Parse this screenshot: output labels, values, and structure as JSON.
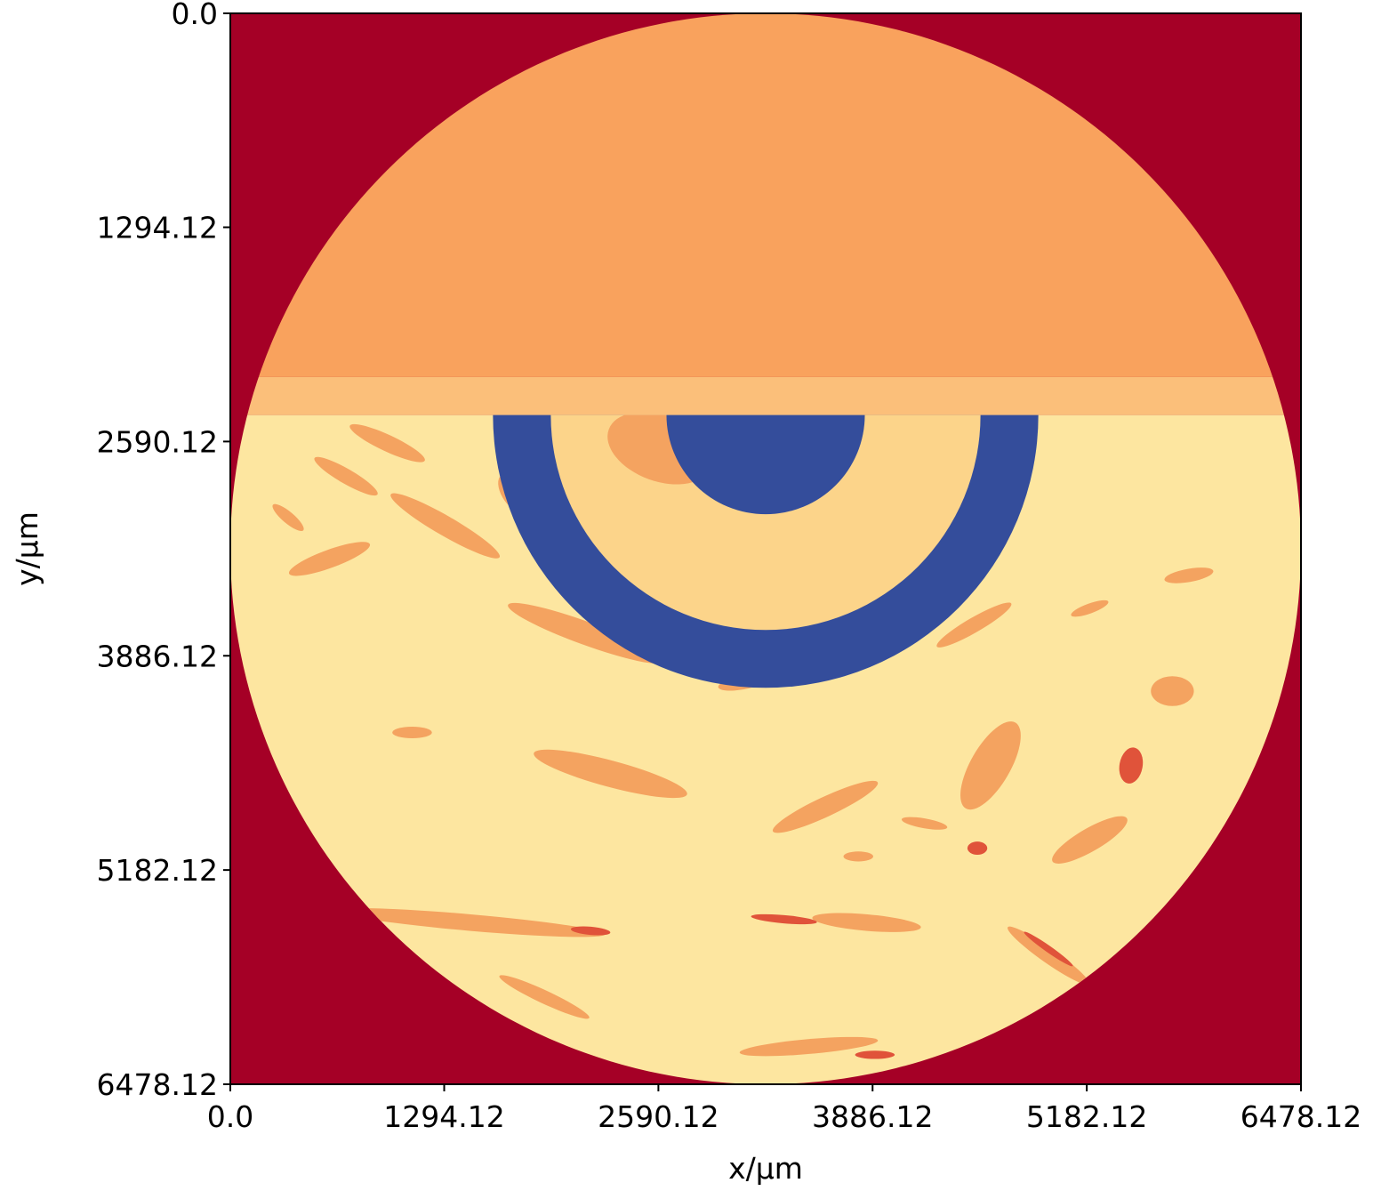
{
  "chart_data": {
    "type": "heatmap",
    "title": "",
    "xlabel": "x/µm",
    "ylabel": "y/µm",
    "xlim": [
      0.0,
      6478.12
    ],
    "ylim": [
      6478.12,
      0.0
    ],
    "y_axis_inverted": true,
    "grid": false,
    "colorbar": false,
    "x_ticks": [
      {
        "value": 0.0,
        "label": "0.0"
      },
      {
        "value": 1294.12,
        "label": "1294.12"
      },
      {
        "value": 2590.12,
        "label": "2590.12"
      },
      {
        "value": 3886.12,
        "label": "3886.12"
      },
      {
        "value": 5182.12,
        "label": "5182.12"
      },
      {
        "value": 6478.12,
        "label": "6478.12"
      }
    ],
    "y_ticks": [
      {
        "value": 0.0,
        "label": "0.0"
      },
      {
        "value": 1294.12,
        "label": "1294.12"
      },
      {
        "value": 2590.12,
        "label": "2590.12"
      },
      {
        "value": 3886.12,
        "label": "3886.12"
      },
      {
        "value": 5182.12,
        "label": "5182.12"
      },
      {
        "value": 6478.12,
        "label": "6478.12"
      }
    ],
    "colormap": "RdYlBu",
    "colors": {
      "background": "#a50026",
      "upper_region": "#f9a25d",
      "interface_band": "#fbbf7a",
      "bone_matrix": "#fde6a0",
      "pores": "#f4a360",
      "dark_pores": "#e0533a",
      "implant": "#344d9b",
      "inner_cavity": "#fcd48a"
    },
    "regions": [
      {
        "name": "field-of-view",
        "shape": "circle",
        "cx": 3239.06,
        "cy": 3239.06,
        "r": 3239.06
      },
      {
        "name": "upper-material",
        "y_range": [
          0.0,
          2200.0
        ]
      },
      {
        "name": "interface-band",
        "y_range": [
          2200.0,
          2430.0
        ]
      },
      {
        "name": "implant-outer-ring",
        "center": [
          3239.06,
          2430.0
        ],
        "r_outer": 1650.0,
        "r_inner": 1300.0
      },
      {
        "name": "implant-inner-core",
        "center": [
          3239.06,
          2430.0
        ],
        "r": 600.0
      }
    ]
  }
}
